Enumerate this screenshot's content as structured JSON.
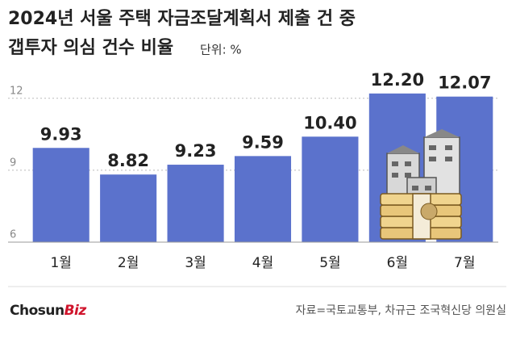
{
  "chart_data": {
    "type": "bar",
    "title": [
      "2024년 서울 주택 자금조달계획서 제출 건 중",
      "갭투자 의심 건수 비율"
    ],
    "subtitle": "단위: %",
    "categories": [
      "1월",
      "2월",
      "3월",
      "4월",
      "5월",
      "6월",
      "7월"
    ],
    "values": [
      9.93,
      8.82,
      9.23,
      9.59,
      10.4,
      12.2,
      12.07
    ],
    "value_labels": [
      "9.93",
      "8.82",
      "9.23",
      "9.59",
      "10.40",
      "12.20",
      "12.07"
    ],
    "color": "#5b72cc",
    "ylim": [
      6,
      12.8
    ],
    "yticks": [
      6,
      9,
      12
    ],
    "grid": true,
    "source": "자료=국토교통부, 차규근 조국혁신당 의원실",
    "logo": {
      "main": "Chosun",
      "accent": "Biz"
    }
  }
}
